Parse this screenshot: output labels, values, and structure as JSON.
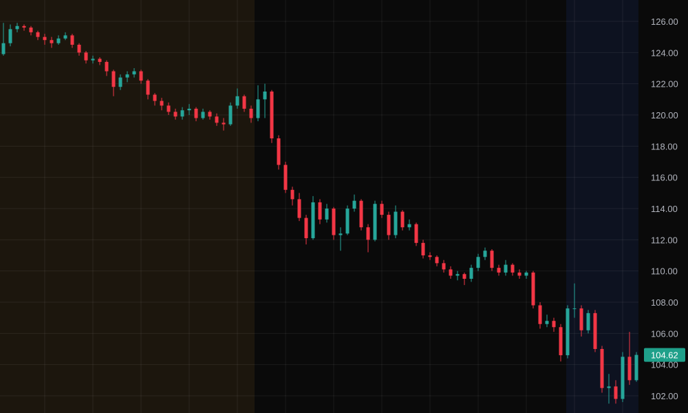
{
  "chart_data": {
    "type": "candlestick",
    "title": "",
    "xlabel": "",
    "ylabel": "",
    "ylim": [
      101,
      126.7
    ],
    "y_ticks": [
      "102.00",
      "104.00",
      "106.00",
      "108.00",
      "110.00",
      "112.00",
      "114.00",
      "116.00",
      "118.00",
      "120.00",
      "122.00",
      "124.00",
      "126.00"
    ],
    "grid": true,
    "y_axis_position": "right",
    "last_price": "104.62",
    "colors": {
      "up": "#26a69a",
      "down": "#f23645",
      "background": "#0a0a0a",
      "pre_session_shade": "#1c160d",
      "post_session_shade": "#0d1220",
      "grid": "#1e1e1e",
      "last_price_badge": "#1fa08a"
    },
    "candles_ohlc": [
      [
        123.9,
        125.9,
        123.8,
        124.6
      ],
      [
        124.6,
        125.8,
        124.4,
        125.5
      ],
      [
        125.5,
        125.9,
        125.3,
        125.7
      ],
      [
        125.7,
        125.8,
        125.4,
        125.6
      ],
      [
        125.6,
        125.7,
        125.1,
        125.3
      ],
      [
        125.3,
        125.4,
        124.8,
        125.0
      ],
      [
        125.0,
        125.2,
        124.5,
        124.8
      ],
      [
        124.8,
        125.0,
        124.3,
        124.6
      ],
      [
        124.6,
        125.1,
        124.5,
        124.9
      ],
      [
        124.9,
        125.3,
        124.8,
        125.1
      ],
      [
        125.1,
        125.2,
        124.3,
        124.5
      ],
      [
        124.5,
        124.6,
        123.8,
        124.0
      ],
      [
        124.0,
        124.1,
        123.3,
        123.5
      ],
      [
        123.5,
        123.8,
        123.3,
        123.6
      ],
      [
        123.6,
        123.7,
        123.2,
        123.4
      ],
      [
        123.4,
        123.5,
        122.5,
        122.8
      ],
      [
        122.8,
        122.9,
        121.2,
        121.8
      ],
      [
        121.8,
        122.6,
        121.6,
        122.4
      ],
      [
        122.4,
        122.8,
        122.1,
        122.6
      ],
      [
        122.6,
        123.0,
        122.4,
        122.8
      ],
      [
        122.8,
        122.9,
        122.0,
        122.2
      ],
      [
        122.2,
        122.3,
        121.0,
        121.3
      ],
      [
        121.3,
        121.4,
        120.6,
        120.9
      ],
      [
        120.9,
        121.1,
        120.3,
        120.6
      ],
      [
        120.6,
        120.8,
        120.0,
        120.2
      ],
      [
        120.2,
        120.4,
        119.7,
        119.9
      ],
      [
        119.9,
        120.5,
        119.7,
        120.3
      ],
      [
        120.3,
        120.7,
        120.0,
        120.4
      ],
      [
        120.4,
        120.5,
        119.6,
        119.8
      ],
      [
        119.8,
        120.4,
        119.7,
        120.2
      ],
      [
        120.2,
        120.3,
        119.7,
        119.9
      ],
      [
        119.9,
        120.1,
        119.3,
        119.5
      ],
      [
        119.5,
        119.8,
        119.0,
        119.4
      ],
      [
        119.4,
        120.8,
        119.3,
        120.6
      ],
      [
        120.6,
        121.7,
        120.4,
        121.2
      ],
      [
        121.2,
        121.3,
        120.2,
        120.4
      ],
      [
        120.4,
        120.6,
        119.5,
        119.8
      ],
      [
        119.8,
        121.9,
        119.6,
        121.0
      ],
      [
        121.0,
        122.0,
        119.8,
        121.5
      ],
      [
        121.5,
        121.6,
        118.2,
        118.5
      ],
      [
        118.5,
        118.7,
        116.5,
        116.8
      ],
      [
        116.8,
        117.0,
        115.0,
        115.2
      ],
      [
        115.2,
        115.4,
        114.2,
        114.6
      ],
      [
        114.6,
        115.0,
        113.2,
        113.4
      ],
      [
        113.4,
        113.6,
        111.7,
        112.1
      ],
      [
        112.1,
        114.8,
        112.0,
        114.4
      ],
      [
        114.4,
        114.6,
        113.0,
        113.3
      ],
      [
        113.3,
        114.3,
        113.1,
        114.0
      ],
      [
        114.0,
        114.1,
        112.0,
        112.3
      ],
      [
        112.3,
        112.8,
        111.3,
        112.4
      ],
      [
        112.4,
        114.2,
        112.3,
        114.0
      ],
      [
        114.0,
        114.9,
        113.8,
        114.5
      ],
      [
        114.5,
        114.6,
        112.6,
        112.8
      ],
      [
        112.8,
        113.0,
        111.2,
        112.0
      ],
      [
        112.0,
        114.5,
        111.9,
        114.3
      ],
      [
        114.3,
        114.5,
        113.4,
        113.6
      ],
      [
        113.6,
        113.8,
        112.0,
        112.3
      ],
      [
        112.3,
        114.2,
        112.1,
        113.8
      ],
      [
        113.8,
        113.9,
        112.6,
        112.8
      ],
      [
        112.8,
        113.3,
        112.6,
        113.0
      ],
      [
        113.0,
        113.1,
        111.6,
        111.8
      ],
      [
        111.8,
        112.0,
        110.8,
        111.0
      ],
      [
        111.0,
        111.2,
        110.7,
        110.9
      ],
      [
        110.9,
        111.0,
        110.3,
        110.5
      ],
      [
        110.5,
        110.7,
        109.9,
        110.1
      ],
      [
        110.1,
        110.3,
        109.5,
        109.7
      ],
      [
        109.7,
        110.0,
        109.4,
        109.8
      ],
      [
        109.8,
        109.9,
        109.1,
        109.5
      ],
      [
        109.5,
        110.4,
        109.3,
        110.2
      ],
      [
        110.2,
        111.1,
        110.0,
        110.9
      ],
      [
        110.9,
        111.5,
        110.7,
        111.3
      ],
      [
        111.3,
        111.4,
        110.0,
        110.2
      ],
      [
        110.2,
        110.4,
        109.7,
        109.9
      ],
      [
        109.9,
        110.7,
        109.7,
        110.4
      ],
      [
        110.4,
        110.5,
        109.7,
        109.9
      ],
      [
        109.9,
        110.1,
        109.5,
        109.7
      ],
      [
        109.7,
        110.0,
        109.5,
        109.9
      ],
      [
        109.9,
        110.0,
        107.6,
        107.8
      ],
      [
        107.8,
        108.0,
        106.3,
        106.6
      ],
      [
        106.6,
        107.2,
        106.4,
        106.8
      ],
      [
        106.8,
        107.0,
        106.1,
        106.4
      ],
      [
        106.4,
        106.6,
        104.2,
        104.6
      ],
      [
        104.6,
        107.8,
        104.4,
        107.6
      ],
      [
        107.6,
        109.2,
        107.0,
        107.6
      ],
      [
        107.6,
        107.8,
        105.8,
        106.2
      ],
      [
        106.2,
        107.5,
        106.0,
        107.3
      ],
      [
        107.3,
        107.5,
        104.8,
        105.0
      ],
      [
        105.0,
        105.2,
        102.2,
        102.5
      ],
      [
        102.5,
        103.4,
        101.5,
        102.6
      ],
      [
        102.6,
        103.0,
        101.5,
        101.8
      ],
      [
        101.8,
        104.8,
        101.6,
        104.5
      ],
      [
        104.5,
        106.1,
        102.7,
        103.0
      ],
      [
        103.0,
        104.8,
        102.9,
        104.62
      ]
    ]
  }
}
